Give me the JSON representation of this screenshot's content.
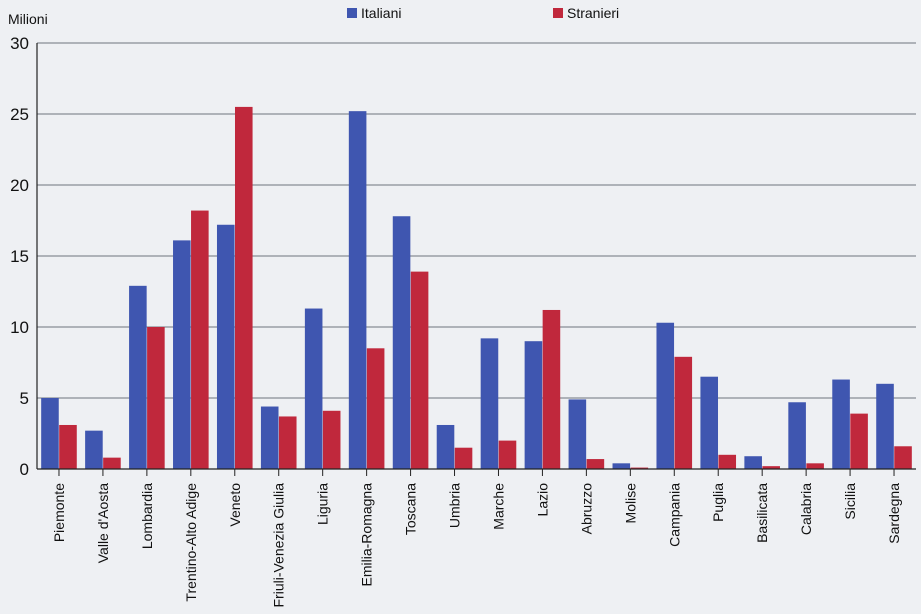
{
  "chart_data": {
    "type": "bar",
    "title": "",
    "xlabel": "",
    "ylabel": "Milioni",
    "ylim": [
      0,
      30
    ],
    "yticks": [
      0,
      5,
      10,
      15,
      20,
      25,
      30
    ],
    "grid": true,
    "legend_position": "top-center",
    "categories": [
      "Piemonte",
      "Valle d'Aosta",
      "Lombardia",
      "Trentino-Alto Adige",
      "Veneto",
      "Friuli-Venezia Giulia",
      "Liguria",
      "Emilia-Romagna",
      "Toscana",
      "Umbria",
      "Marche",
      "Lazio",
      "Abruzzo",
      "Molise",
      "Campania",
      "Puglia",
      "Basilicata",
      "Calabria",
      "Sicilia",
      "Sardegna"
    ],
    "series": [
      {
        "name": "Italiani",
        "color": "#3f56b0",
        "values": [
          5.0,
          2.7,
          12.9,
          16.1,
          17.2,
          4.4,
          11.3,
          25.2,
          17.8,
          3.1,
          9.2,
          9.0,
          4.9,
          0.4,
          10.3,
          6.5,
          0.9,
          4.7,
          6.3,
          6.0
        ]
      },
      {
        "name": "Stranieri",
        "color": "#c0283c",
        "values": [
          3.1,
          0.8,
          10.0,
          18.2,
          25.5,
          3.7,
          4.1,
          8.5,
          13.9,
          1.5,
          2.0,
          11.2,
          0.7,
          0.1,
          7.9,
          1.0,
          0.2,
          0.4,
          3.9,
          1.6
        ]
      }
    ]
  }
}
